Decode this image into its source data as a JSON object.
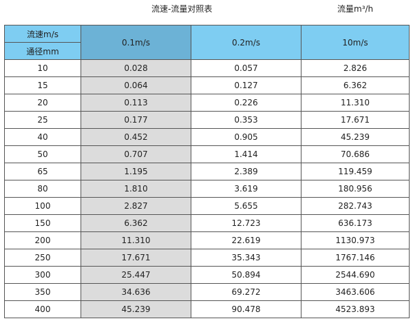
{
  "title": "流速-流量对照表",
  "unit_label": "流量m³/h",
  "header": {
    "velocity_label": "流速m/s",
    "diameter_label": "通径mm",
    "columns": [
      "0.1m/s",
      "0.2m/s",
      "10m/s"
    ]
  },
  "rows": [
    [
      "10",
      "0.028",
      "0.057",
      "2.826"
    ],
    [
      "15",
      "0.064",
      "0.127",
      "6.362"
    ],
    [
      "20",
      "0.113",
      "0.226",
      "11.310"
    ],
    [
      "25",
      "0.177",
      "0.353",
      "17.671"
    ],
    [
      "40",
      "0.452",
      "0.905",
      "45.239"
    ],
    [
      "50",
      "0.707",
      "1.414",
      "70.686"
    ],
    [
      "65",
      "1.195",
      "2.389",
      "119.459"
    ],
    [
      "80",
      "1.810",
      "3.619",
      "180.956"
    ],
    [
      "100",
      "2.827",
      "5.655",
      "282.743"
    ],
    [
      "150",
      "6.362",
      "12.723",
      "636.173"
    ],
    [
      "200",
      "11.310",
      "22.619",
      "1130.973"
    ],
    [
      "250",
      "17.671",
      "35.343",
      "1767.146"
    ],
    [
      "300",
      "25.447",
      "50.894",
      "2544.690"
    ],
    [
      "350",
      "34.636",
      "69.272",
      "3463.606"
    ],
    [
      "400",
      "45.239",
      "90.478",
      "4523.893"
    ]
  ],
  "colors": {
    "header": "#7ecdf2",
    "selected_header": "#6cb2d6",
    "highlight_column": "#dcdcdc"
  }
}
